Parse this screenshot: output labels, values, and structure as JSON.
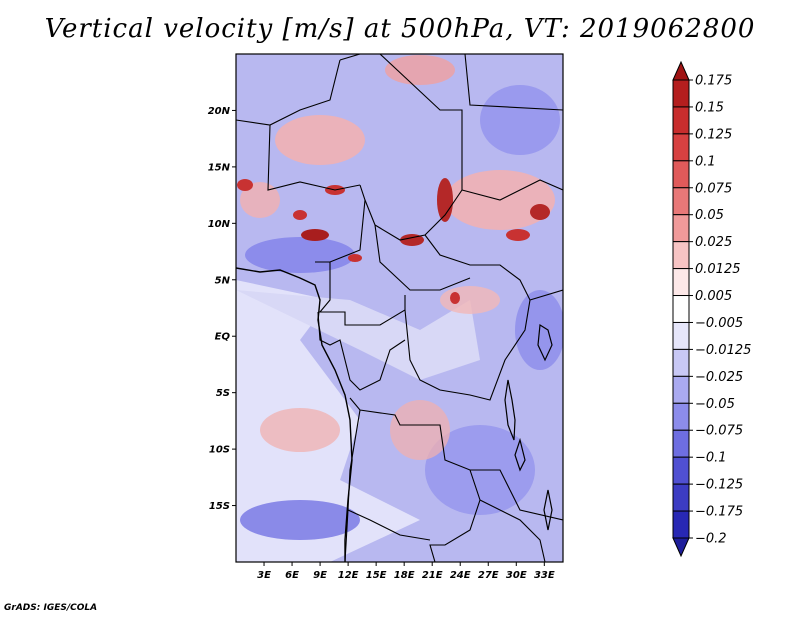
{
  "title": "Vertical velocity [m/s] at 500hPa, VT: 2019062800",
  "credit": "GrADS: IGES/COLA",
  "map": {
    "lat_range": [
      -20,
      25
    ],
    "lon_range": [
      0,
      35
    ],
    "lat_ticks": [
      "20N",
      "15N",
      "10N",
      "5N",
      "EQ",
      "5S",
      "10S",
      "15S"
    ],
    "lat_values": [
      20,
      15,
      10,
      5,
      0,
      -5,
      -10,
      -15
    ],
    "lon_ticks": [
      "3E",
      "6E",
      "9E",
      "12E",
      "15E",
      "18E",
      "21E",
      "24E",
      "27E",
      "30E",
      "33E"
    ],
    "lon_values": [
      3,
      6,
      9,
      12,
      15,
      18,
      21,
      24,
      27,
      30,
      33
    ],
    "background_color": "#b8b8f0"
  },
  "colorbar": {
    "labels": [
      "0.175",
      "0.15",
      "0.125",
      "0.1",
      "0.075",
      "0.05",
      "0.025",
      "0.0125",
      "0.005",
      "−0.005",
      "−0.0125",
      "−0.025",
      "−0.05",
      "−0.075",
      "−0.1",
      "−0.125",
      "−0.175",
      "−0.2"
    ],
    "colors": [
      "#a01414",
      "#b41e1e",
      "#c82d2d",
      "#d74141",
      "#e05a5a",
      "#e87878",
      "#f09a9a",
      "#f7c4c4",
      "#fde8e8",
      "#ffffff",
      "#e6e6fa",
      "#c8c8f5",
      "#aaaaf0",
      "#8c8ceb",
      "#6e6ee1",
      "#5050d2",
      "#3c3cc3",
      "#2828b4",
      "#1e1e9b"
    ]
  }
}
